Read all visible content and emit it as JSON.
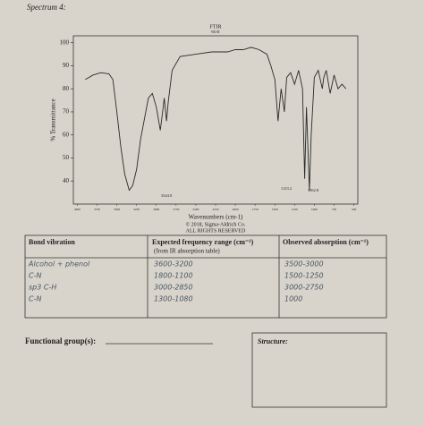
{
  "header": {
    "title": "Spectrum 4:"
  },
  "chart_data": {
    "type": "line",
    "title": "FTIR",
    "subtitle": "NEAT",
    "y_label": "% Transmittance",
    "x_label": "Wavenumbers (cm-1)",
    "credits": [
      "© 2018, Sigma-Aldrich Co.",
      "ALL RIGHTS RESERVED"
    ],
    "color": "#2a2a2a",
    "x": [
      3900,
      3800,
      3700,
      3600,
      3550,
      3500,
      3450,
      3400,
      3344,
      3300,
      3250,
      3200,
      3100,
      3050,
      3000,
      2950,
      2920,
      2900,
      2870,
      2850,
      2800,
      2700,
      2500,
      2300,
      2100,
      2000,
      1900,
      1800,
      1700,
      1600,
      1550,
      1500,
      1460,
      1420,
      1380,
      1350,
      1300,
      1250,
      1200,
      1150,
      1123,
      1100,
      1062,
      1040,
      1000,
      950,
      900,
      880,
      850,
      800,
      750,
      700,
      650,
      600
    ],
    "y": [
      84,
      86,
      87,
      86.5,
      84,
      70,
      55,
      43,
      36,
      38,
      45,
      58,
      76,
      78,
      72,
      62,
      70,
      76,
      66,
      74,
      88,
      94,
      95,
      96,
      96,
      97,
      97,
      98,
      97,
      95,
      90,
      84,
      66,
      80,
      70,
      85,
      87,
      82,
      88,
      80,
      41,
      72,
      36,
      60,
      85,
      88,
      80,
      85,
      88,
      78,
      86,
      80,
      82,
      80
    ],
    "annotations": [
      "3344.0",
      "1123.2",
      "1062.8"
    ],
    "xlim": [
      4050,
      450
    ],
    "ylim": [
      30,
      103
    ],
    "xticks": [
      4000,
      3750,
      3500,
      3250,
      3000,
      2750,
      2500,
      2250,
      2000,
      1750,
      1500,
      1250,
      1000,
      750,
      500
    ],
    "yticks": [
      40,
      50,
      60,
      70,
      80,
      90,
      100
    ]
  },
  "table": {
    "header": [
      "Bond vibration",
      "Expected frequency range (cm⁻¹)",
      "Observed absorption (cm⁻¹)"
    ],
    "header_note": "(from IR absorption table)",
    "rows": [
      [
        "Alcohol + phenol",
        "3600-3200",
        "3500-3000"
      ],
      [
        "C-N",
        "1800-1100",
        "1500-1250"
      ],
      [
        "sp3 C-H",
        "3000-2850",
        "3000-2750"
      ],
      [
        "C-N",
        "1300-1080",
        "1000"
      ]
    ]
  },
  "footer": {
    "functional_groups": "Functional group(s):",
    "structure": "Structure:"
  }
}
